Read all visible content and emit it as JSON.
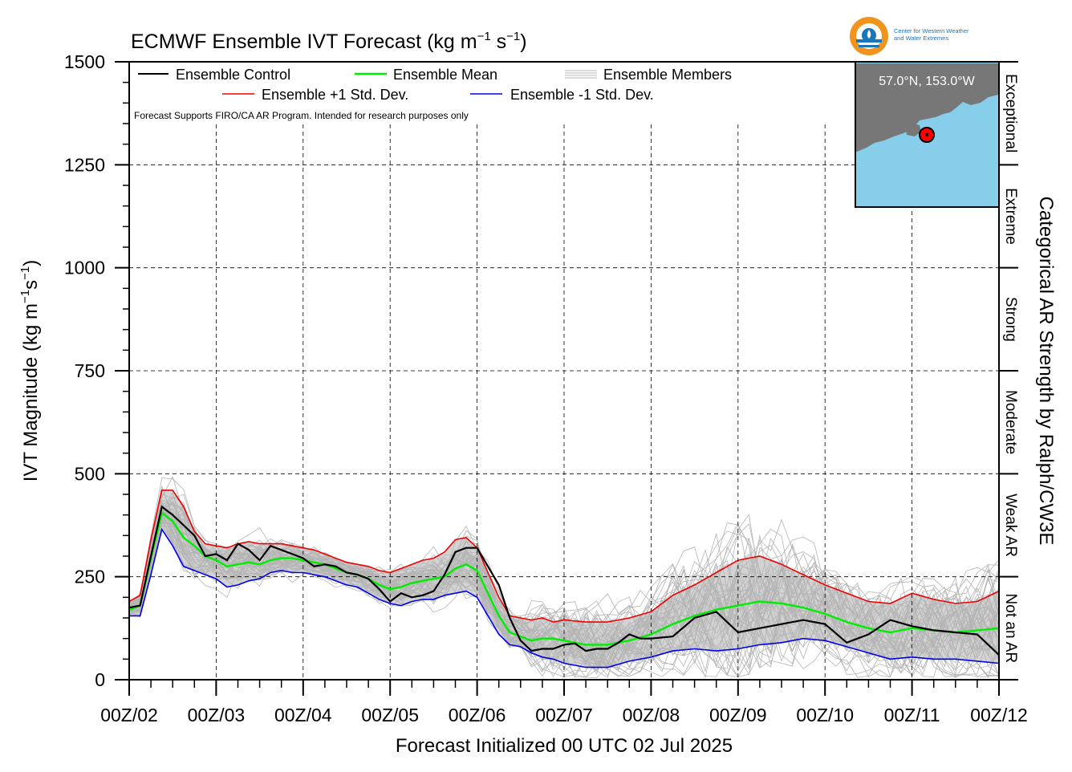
{
  "logo": {
    "name": "Center for Western Weather and Water Extremes",
    "line1": "Center for Western Weather",
    "line2": "and Water Extremes"
  },
  "colors": {
    "control": "#000000",
    "mean": "#00ee00",
    "plus_sd": "#ee0000",
    "minus_sd": "#0000ee",
    "members": "#b4b4b4",
    "spread_fill": "#d3d3d3",
    "map_ocean": "#87ceeb",
    "map_land": "#777777",
    "marker": "#ff0000",
    "logo_orange": "#f0941d",
    "logo_blue": "#1b75bb"
  },
  "chart_data": {
    "type": "line",
    "title_main": "ECMWF Ensemble IVT Forecast (kg m",
    "title_exp1": "−1",
    "title_mid": " s",
    "title_exp2": "−1",
    "title_end": ")",
    "ylabel_main": "IVT Magnitude (kg m",
    "ylabel_exp1": "−1",
    "ylabel_mid": "s",
    "ylabel_exp2": "−1",
    "ylabel_end": ")",
    "xlabel": "Forecast Initialized 00 UTC 02 Jul 2025",
    "right_label": "Categorical AR Strength by Ralph/CW3E",
    "note": "Forecast Supports FIRO/CA AR Program. Intended for research purposes only",
    "location": "57.0°N, 153.0°W",
    "ylim": [
      0,
      1500
    ],
    "xlim_days": [
      0,
      10
    ],
    "yticks": [
      0,
      250,
      500,
      750,
      1000,
      1250,
      1500
    ],
    "ytick_labels": [
      "0",
      "250",
      "500",
      "750",
      "1000",
      "1250",
      "1500"
    ],
    "xtick_labels": [
      "00Z/02",
      "00Z/03",
      "00Z/04",
      "00Z/05",
      "00Z/06",
      "00Z/07",
      "00Z/08",
      "00Z/09",
      "00Z/10",
      "00Z/11",
      "00Z/12"
    ],
    "categories": [
      {
        "label": "Not an AR",
        "range": [
          0,
          250
        ]
      },
      {
        "label": "Weak AR",
        "range": [
          250,
          500
        ]
      },
      {
        "label": "Moderate",
        "range": [
          500,
          750
        ]
      },
      {
        "label": "Strong",
        "range": [
          750,
          1000
        ]
      },
      {
        "label": "Extreme",
        "range": [
          1000,
          1250
        ]
      },
      {
        "label": "Exceptional",
        "range": [
          1250,
          1500
        ]
      }
    ],
    "legend": {
      "control": "Ensemble Control",
      "mean": "Ensemble Mean",
      "members": "Ensemble Members",
      "plus_sd": "Ensemble +1 Std. Dev.",
      "minus_sd": "Ensemble -1 Std. Dev."
    },
    "series": {
      "control": [
        [
          0,
          175
        ],
        [
          0.125,
          180
        ],
        [
          0.25,
          300
        ],
        [
          0.375,
          420
        ],
        [
          0.5,
          400
        ],
        [
          0.625,
          375
        ],
        [
          0.75,
          350
        ],
        [
          0.875,
          300
        ],
        [
          1,
          305
        ],
        [
          1.125,
          290
        ],
        [
          1.25,
          330
        ],
        [
          1.375,
          315
        ],
        [
          1.5,
          290
        ],
        [
          1.625,
          325
        ],
        [
          1.75,
          315
        ],
        [
          1.875,
          305
        ],
        [
          2,
          295
        ],
        [
          2.125,
          275
        ],
        [
          2.25,
          280
        ],
        [
          2.375,
          275
        ],
        [
          2.5,
          260
        ],
        [
          2.625,
          255
        ],
        [
          2.75,
          245
        ],
        [
          2.875,
          220
        ],
        [
          3,
          190
        ],
        [
          3.125,
          210
        ],
        [
          3.25,
          200
        ],
        [
          3.375,
          205
        ],
        [
          3.5,
          215
        ],
        [
          3.625,
          255
        ],
        [
          3.75,
          310
        ],
        [
          3.875,
          320
        ],
        [
          4,
          320
        ],
        [
          4.125,
          275
        ],
        [
          4.25,
          230
        ],
        [
          4.375,
          150
        ],
        [
          4.5,
          95
        ],
        [
          4.625,
          70
        ],
        [
          4.75,
          75
        ],
        [
          4.875,
          75
        ],
        [
          5,
          85
        ],
        [
          5.125,
          88
        ],
        [
          5.25,
          70
        ],
        [
          5.375,
          75
        ],
        [
          5.5,
          75
        ],
        [
          5.625,
          90
        ],
        [
          5.75,
          110
        ],
        [
          5.875,
          100
        ],
        [
          6,
          100
        ],
        [
          6.25,
          105
        ],
        [
          6.5,
          150
        ],
        [
          6.75,
          165
        ],
        [
          7,
          115
        ],
        [
          7.25,
          125
        ],
        [
          7.5,
          135
        ],
        [
          7.75,
          145
        ],
        [
          8,
          135
        ],
        [
          8.25,
          90
        ],
        [
          8.5,
          110
        ],
        [
          8.75,
          145
        ],
        [
          9,
          130
        ],
        [
          9.25,
          120
        ],
        [
          9.5,
          115
        ],
        [
          9.75,
          110
        ],
        [
          10,
          60
        ]
      ],
      "mean": [
        [
          0,
          170
        ],
        [
          0.125,
          180
        ],
        [
          0.25,
          295
        ],
        [
          0.375,
          405
        ],
        [
          0.5,
          385
        ],
        [
          0.625,
          345
        ],
        [
          0.75,
          325
        ],
        [
          0.875,
          300
        ],
        [
          1,
          290
        ],
        [
          1.125,
          275
        ],
        [
          1.25,
          280
        ],
        [
          1.375,
          285
        ],
        [
          1.5,
          280
        ],
        [
          1.625,
          290
        ],
        [
          1.75,
          295
        ],
        [
          1.875,
          295
        ],
        [
          2,
          290
        ],
        [
          2.125,
          285
        ],
        [
          2.25,
          280
        ],
        [
          2.375,
          270
        ],
        [
          2.5,
          260
        ],
        [
          2.625,
          255
        ],
        [
          2.75,
          245
        ],
        [
          2.875,
          230
        ],
        [
          3,
          220
        ],
        [
          3.125,
          225
        ],
        [
          3.25,
          235
        ],
        [
          3.375,
          240
        ],
        [
          3.5,
          245
        ],
        [
          3.625,
          250
        ],
        [
          3.75,
          270
        ],
        [
          3.875,
          280
        ],
        [
          4,
          265
        ],
        [
          4.125,
          210
        ],
        [
          4.25,
          155
        ],
        [
          4.375,
          115
        ],
        [
          4.5,
          105
        ],
        [
          4.625,
          95
        ],
        [
          4.75,
          100
        ],
        [
          4.875,
          100
        ],
        [
          5,
          95
        ],
        [
          5.25,
          85
        ],
        [
          5.5,
          85
        ],
        [
          5.75,
          95
        ],
        [
          6,
          110
        ],
        [
          6.25,
          135
        ],
        [
          6.5,
          155
        ],
        [
          6.75,
          170
        ],
        [
          7,
          180
        ],
        [
          7.25,
          190
        ],
        [
          7.5,
          185
        ],
        [
          7.75,
          175
        ],
        [
          8,
          160
        ],
        [
          8.25,
          140
        ],
        [
          8.5,
          125
        ],
        [
          8.75,
          115
        ],
        [
          9,
          125
        ],
        [
          9.25,
          120
        ],
        [
          9.5,
          115
        ],
        [
          9.75,
          120
        ],
        [
          10,
          125
        ]
      ],
      "plus_sd": [
        [
          0,
          190
        ],
        [
          0.125,
          205
        ],
        [
          0.25,
          340
        ],
        [
          0.375,
          460
        ],
        [
          0.5,
          460
        ],
        [
          0.625,
          420
        ],
        [
          0.75,
          360
        ],
        [
          0.875,
          330
        ],
        [
          1,
          325
        ],
        [
          1.125,
          320
        ],
        [
          1.25,
          330
        ],
        [
          1.375,
          335
        ],
        [
          1.5,
          330
        ],
        [
          1.625,
          330
        ],
        [
          1.75,
          330
        ],
        [
          1.875,
          325
        ],
        [
          2,
          320
        ],
        [
          2.125,
          315
        ],
        [
          2.25,
          305
        ],
        [
          2.375,
          295
        ],
        [
          2.5,
          285
        ],
        [
          2.625,
          280
        ],
        [
          2.75,
          275
        ],
        [
          2.875,
          265
        ],
        [
          3,
          260
        ],
        [
          3.125,
          270
        ],
        [
          3.25,
          280
        ],
        [
          3.375,
          290
        ],
        [
          3.5,
          295
        ],
        [
          3.625,
          310
        ],
        [
          3.75,
          340
        ],
        [
          3.875,
          345
        ],
        [
          4,
          320
        ],
        [
          4.125,
          260
        ],
        [
          4.25,
          200
        ],
        [
          4.375,
          155
        ],
        [
          4.5,
          150
        ],
        [
          4.625,
          145
        ],
        [
          4.75,
          150
        ],
        [
          4.875,
          140
        ],
        [
          5,
          145
        ],
        [
          5.25,
          140
        ],
        [
          5.5,
          140
        ],
        [
          5.75,
          150
        ],
        [
          6,
          165
        ],
        [
          6.25,
          205
        ],
        [
          6.5,
          230
        ],
        [
          6.75,
          260
        ],
        [
          7,
          290
        ],
        [
          7.25,
          300
        ],
        [
          7.5,
          280
        ],
        [
          7.75,
          255
        ],
        [
          8,
          230
        ],
        [
          8.25,
          210
        ],
        [
          8.5,
          190
        ],
        [
          8.75,
          185
        ],
        [
          9,
          210
        ],
        [
          9.25,
          195
        ],
        [
          9.5,
          185
        ],
        [
          9.75,
          190
        ],
        [
          10,
          215
        ]
      ],
      "minus_sd": [
        [
          0,
          155
        ],
        [
          0.125,
          155
        ],
        [
          0.25,
          255
        ],
        [
          0.375,
          365
        ],
        [
          0.5,
          325
        ],
        [
          0.625,
          275
        ],
        [
          0.75,
          265
        ],
        [
          0.875,
          255
        ],
        [
          1,
          245
        ],
        [
          1.125,
          225
        ],
        [
          1.25,
          230
        ],
        [
          1.375,
          240
        ],
        [
          1.5,
          245
        ],
        [
          1.625,
          260
        ],
        [
          1.75,
          265
        ],
        [
          1.875,
          260
        ],
        [
          2,
          260
        ],
        [
          2.125,
          255
        ],
        [
          2.25,
          250
        ],
        [
          2.375,
          240
        ],
        [
          2.5,
          230
        ],
        [
          2.625,
          225
        ],
        [
          2.75,
          210
        ],
        [
          2.875,
          195
        ],
        [
          3,
          185
        ],
        [
          3.125,
          180
        ],
        [
          3.25,
          190
        ],
        [
          3.375,
          195
        ],
        [
          3.5,
          195
        ],
        [
          3.625,
          205
        ],
        [
          3.75,
          210
        ],
        [
          3.875,
          215
        ],
        [
          4,
          200
        ],
        [
          4.125,
          155
        ],
        [
          4.25,
          110
        ],
        [
          4.375,
          85
        ],
        [
          4.5,
          80
        ],
        [
          4.625,
          65
        ],
        [
          4.75,
          55
        ],
        [
          4.875,
          50
        ],
        [
          5,
          40
        ],
        [
          5.25,
          30
        ],
        [
          5.5,
          30
        ],
        [
          5.75,
          45
        ],
        [
          6,
          55
        ],
        [
          6.25,
          70
        ],
        [
          6.5,
          75
        ],
        [
          6.75,
          70
        ],
        [
          7,
          75
        ],
        [
          7.25,
          85
        ],
        [
          7.5,
          90
        ],
        [
          7.75,
          100
        ],
        [
          8,
          95
        ],
        [
          8.25,
          80
        ],
        [
          8.5,
          65
        ],
        [
          8.75,
          50
        ],
        [
          9,
          55
        ],
        [
          9.25,
          50
        ],
        [
          9.5,
          50
        ],
        [
          9.75,
          45
        ],
        [
          10,
          40
        ]
      ]
    },
    "members_count": 50
  }
}
